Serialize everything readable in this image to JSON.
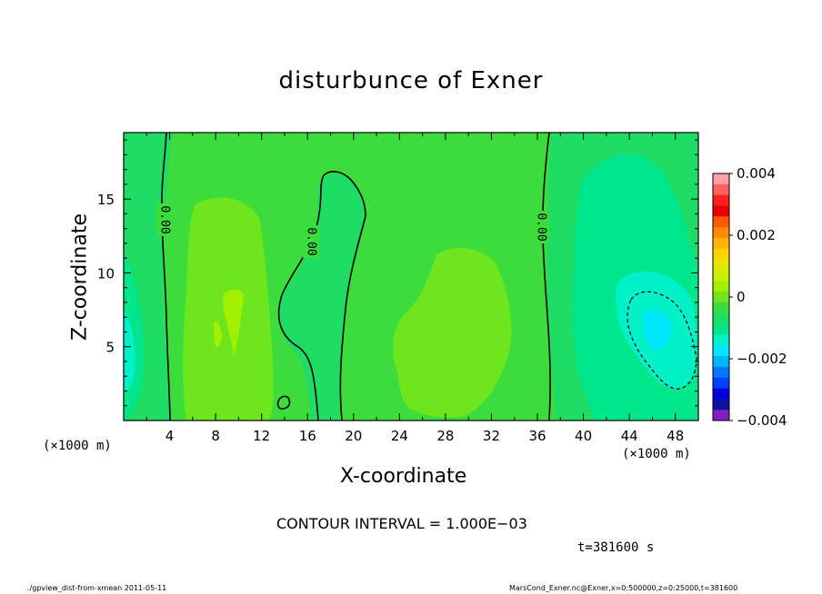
{
  "chart_data": {
    "type": "heatmap",
    "title": "disturbunce of Exner",
    "xlabel": "X-coordinate",
    "ylabel": "Z-coordinate",
    "x_unit_label": "(×1000 m)",
    "x_ticks": [
      4,
      8,
      12,
      16,
      20,
      24,
      28,
      32,
      36,
      40,
      44,
      48
    ],
    "y_ticks": [
      5,
      10,
      15
    ],
    "xlim": [
      0,
      50
    ],
    "ylim": [
      0,
      19.5
    ],
    "colorbar": {
      "levels": [
        0.004,
        0.002,
        0,
        -0.002,
        -0.004
      ],
      "labels": [
        "0.004",
        "0.002",
        "0",
        "−0.002",
        "−0.004"
      ],
      "colors": [
        "#ffa0a0",
        "#ff6060",
        "#ff2020",
        "#e80000",
        "#ff5a00",
        "#ff8c00",
        "#ffb400",
        "#ffd200",
        "#e6e600",
        "#c8f000",
        "#a0f000",
        "#6ee61e",
        "#3cdc3c",
        "#1edc64",
        "#00e68c",
        "#00f0c8",
        "#00e6ff",
        "#00b4ff",
        "#0078ff",
        "#0040ff",
        "#0000dc",
        "#1010a0",
        "#8020c0"
      ]
    },
    "contour_labels": [
      "0.00",
      "0.00",
      "0.00"
    ],
    "contour_interval": "CONTOUR INTERVAL = 1.000E−03",
    "time": "t=381600 s"
  },
  "footer": {
    "left": "./gpview_dist-from-xmean  2011-05-11",
    "right": "MarsCond_Exner.nc@Exner,x=0:500000,z=0:25000,t=381600"
  }
}
